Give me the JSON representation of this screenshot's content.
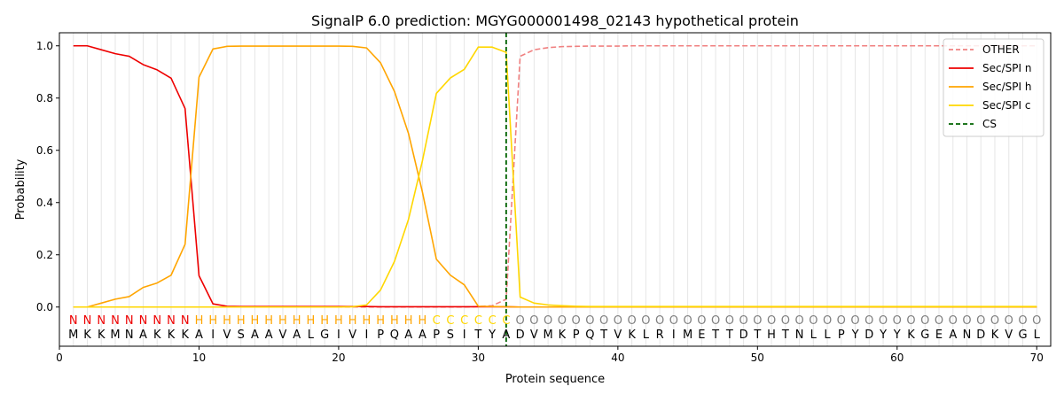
{
  "chart_data": {
    "type": "line",
    "title": "SignalP 6.0 prediction: MGYG000001498_02143 hypothetical protein",
    "xlabel": "Protein sequence",
    "ylabel": "Probability",
    "xlim": [
      0,
      71
    ],
    "ylim": [
      -0.15,
      1.05
    ],
    "xticks": [
      0,
      10,
      20,
      30,
      40,
      50,
      60,
      70
    ],
    "yticks": [
      0.0,
      0.2,
      0.4,
      0.6,
      0.8,
      1.0
    ],
    "grid": "vertical lines at each residue",
    "legend_position": "top-right",
    "colors": {
      "OTHER": "#f08080",
      "Sec/SPI n": "#ee0000",
      "Sec/SPI h": "#ffa500",
      "Sec/SPI c": "#ffd700",
      "CS": "#006400",
      "O_label": "#808080"
    },
    "x": [
      1,
      2,
      3,
      4,
      5,
      6,
      7,
      8,
      9,
      10,
      11,
      12,
      13,
      14,
      15,
      16,
      17,
      18,
      19,
      20,
      21,
      22,
      23,
      24,
      25,
      26,
      27,
      28,
      29,
      30,
      31,
      32,
      33,
      34,
      35,
      36,
      37,
      38,
      39,
      40,
      41,
      42,
      43,
      44,
      45,
      46,
      47,
      48,
      49,
      50,
      51,
      52,
      53,
      54,
      55,
      56,
      57,
      58,
      59,
      60,
      61,
      62,
      63,
      64,
      65,
      66,
      67,
      68,
      69,
      70
    ],
    "series": [
      {
        "name": "OTHER",
        "style": "dashed",
        "values": [
          0,
          0,
          0,
          0,
          0,
          0,
          0,
          0,
          0,
          0,
          0,
          0,
          0,
          0,
          0,
          0,
          0,
          0,
          0,
          0,
          0,
          0,
          0,
          0,
          0,
          0,
          0,
          0,
          0,
          0.002,
          0.005,
          0.03,
          0.96,
          0.985,
          0.993,
          0.997,
          0.998,
          0.999,
          0.999,
          0.999,
          1,
          1,
          1,
          1,
          1,
          1,
          1,
          1,
          1,
          1,
          1,
          1,
          1,
          1,
          1,
          1,
          1,
          1,
          1,
          1,
          1,
          1,
          1,
          1,
          1,
          1,
          1,
          1,
          1,
          1
        ]
      },
      {
        "name": "Sec/SPI n",
        "style": "solid",
        "values": [
          1.0,
          1.0,
          0.985,
          0.97,
          0.96,
          0.928,
          0.908,
          0.876,
          0.76,
          0.12,
          0.012,
          0.003,
          0.002,
          0.002,
          0.002,
          0.002,
          0.002,
          0.002,
          0.002,
          0.002,
          0.002,
          0.002,
          0.001,
          0.001,
          0.001,
          0.001,
          0.001,
          0.001,
          0.001,
          0.001,
          0.001,
          0.001,
          0,
          0,
          0,
          0,
          0,
          0,
          0,
          0,
          0,
          0,
          0,
          0,
          0,
          0,
          0,
          0,
          0,
          0,
          0,
          0,
          0,
          0,
          0,
          0,
          0,
          0,
          0,
          0,
          0,
          0,
          0,
          0,
          0,
          0,
          0,
          0,
          0,
          0
        ]
      },
      {
        "name": "Sec/SPI h",
        "style": "solid",
        "values": [
          0,
          0,
          0.015,
          0.03,
          0.04,
          0.075,
          0.092,
          0.122,
          0.24,
          0.88,
          0.988,
          0.998,
          0.999,
          0.999,
          0.999,
          0.999,
          0.999,
          0.999,
          0.999,
          0.999,
          0.998,
          0.992,
          0.935,
          0.825,
          0.665,
          0.44,
          0.183,
          0.122,
          0.085,
          0.003,
          0.002,
          0.001,
          0,
          0,
          0,
          0,
          0,
          0,
          0,
          0,
          0,
          0,
          0,
          0,
          0,
          0,
          0,
          0,
          0,
          0,
          0,
          0,
          0,
          0,
          0,
          0,
          0,
          0,
          0,
          0,
          0,
          0,
          0,
          0,
          0,
          0,
          0,
          0,
          0,
          0
        ]
      },
      {
        "name": "Sec/SPI c",
        "style": "solid",
        "values": [
          0,
          0,
          0,
          0,
          0,
          0,
          0,
          0,
          0,
          0,
          0,
          0,
          0,
          0,
          0,
          0,
          0,
          0,
          0,
          0,
          0.001,
          0.008,
          0.065,
          0.175,
          0.335,
          0.56,
          0.818,
          0.877,
          0.91,
          0.995,
          0.995,
          0.975,
          0.038,
          0.015,
          0.008,
          0.005,
          0.003,
          0.002,
          0.002,
          0.002,
          0.002,
          0.002,
          0.002,
          0.002,
          0.002,
          0.002,
          0.002,
          0.002,
          0.002,
          0.002,
          0.002,
          0.002,
          0.002,
          0.002,
          0.002,
          0.002,
          0.002,
          0.002,
          0.002,
          0.002,
          0.002,
          0.002,
          0.002,
          0.002,
          0.002,
          0.002,
          0.002,
          0.002,
          0.002,
          0.002
        ]
      },
      {
        "name": "CS",
        "style": "dashed-vertical",
        "x": 32
      }
    ],
    "region_labels": [
      "N",
      "N",
      "N",
      "N",
      "N",
      "N",
      "N",
      "N",
      "N",
      "H",
      "H",
      "H",
      "H",
      "H",
      "H",
      "H",
      "H",
      "H",
      "H",
      "H",
      "H",
      "H",
      "H",
      "H",
      "H",
      "H",
      "C",
      "C",
      "C",
      "C",
      "C",
      "C",
      "O",
      "O",
      "O",
      "O",
      "O",
      "O",
      "O",
      "O",
      "O",
      "O",
      "O",
      "O",
      "O",
      "O",
      "O",
      "O",
      "O",
      "O",
      "O",
      "O",
      "O",
      "O",
      "O",
      "O",
      "O",
      "O",
      "O",
      "O",
      "O",
      "O",
      "O",
      "O",
      "O",
      "O",
      "O",
      "O",
      "O",
      "O"
    ],
    "sequence": [
      "M",
      "K",
      "K",
      "M",
      "N",
      "A",
      "K",
      "K",
      "K",
      "A",
      "I",
      "V",
      "S",
      "A",
      "A",
      "V",
      "A",
      "L",
      "G",
      "I",
      "V",
      "I",
      "P",
      "Q",
      "A",
      "A",
      "P",
      "S",
      "I",
      "T",
      "Y",
      "A",
      "D",
      "V",
      "M",
      "K",
      "P",
      "Q",
      "T",
      "V",
      "K",
      "L",
      "R",
      "I",
      "M",
      "E",
      "T",
      "T",
      "D",
      "T",
      "H",
      "T",
      "N",
      "L",
      "L",
      "P",
      "Y",
      "D",
      "Y",
      "Y",
      "K",
      "G",
      "E",
      "A",
      "N",
      "D",
      "K",
      "V",
      "G",
      "L"
    ]
  }
}
